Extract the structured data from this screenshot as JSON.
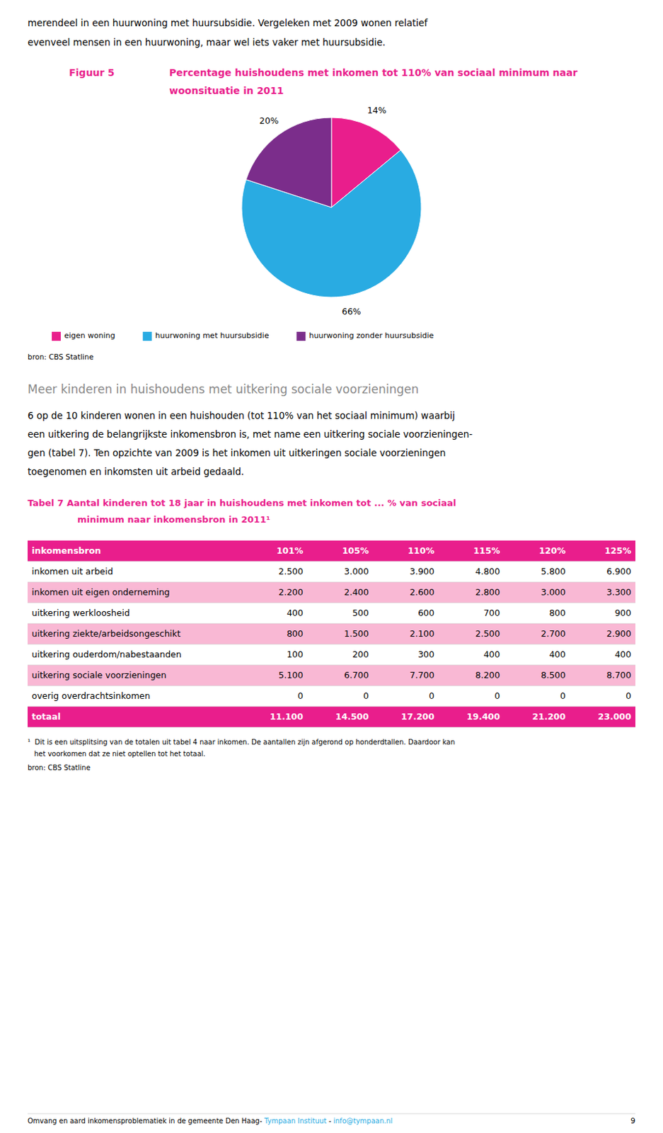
{
  "chart_data": {
    "type": "pie",
    "title": "Percentage huishoudens met inkomen tot 110% van sociaal minimum naar woonsituatie in 2011",
    "categories": [
      "eigen woning",
      "huurwoning met huursubsidie",
      "huurwoning zonder huursubsidie"
    ],
    "values": [
      14,
      66,
      20
    ],
    "value_labels": [
      "14%",
      "66%",
      "20%"
    ],
    "colors": [
      "#E91E8C",
      "#29ABE2",
      "#7B2D8B"
    ],
    "data_labels": true,
    "legend": "bottom"
  },
  "page": {
    "top_text": [
      "merendeel in een huurwoning met huursubsidie. Vergeleken met 2009 wonen relatief",
      "evenveel mensen in een huurwoning, maar wel iets vaker met huursubsidie."
    ],
    "figure_label": "Figuur 5",
    "chart_source": "bron: CBS Statline",
    "section_title": "Meer kinderen in huishoudens met uitkering sociale voorzieningen",
    "body": [
      "6 op de 10 kinderen wonen in een huishouden (tot 110% van het sociaal minimum) waarbij",
      "een uitkering de belangrijkste inkomensbron is, met name een uitkering sociale voorzieningen-",
      "gen (tabel 7). Ten opzichte van 2009 is het inkomen uit uitkeringen sociale voorzieningen",
      "toegenomen en inkomsten uit arbeid gedaald."
    ],
    "table": {
      "title": [
        "Tabel 7   Aantal kinderen tot 18 jaar in huishoudens met inkomen tot ... % van sociaal",
        "minimum naar inkomensbron in 2011¹"
      ],
      "header": [
        "inkomensbron",
        "101%",
        "105%",
        "110%",
        "115%",
        "120%",
        "125%"
      ],
      "rows": [
        [
          "inkomen uit arbeid",
          "2.500",
          "3.000",
          "3.900",
          "4.800",
          "5.800",
          "6.900"
        ],
        [
          "inkomen uit eigen onderneming",
          "2.200",
          "2.400",
          "2.600",
          "2.800",
          "3.000",
          "3.300"
        ],
        [
          "uitkering werkloosheid",
          "400",
          "500",
          "600",
          "700",
          "800",
          "900"
        ],
        [
          "uitkering ziekte/arbeidsongeschikt",
          "800",
          "1.500",
          "2.100",
          "2.500",
          "2.700",
          "2.900"
        ],
        [
          "uitkering ouderdom/nabestaanden",
          "100",
          "200",
          "300",
          "400",
          "400",
          "400"
        ],
        [
          "uitkering sociale voorzieningen",
          "5.100",
          "6.700",
          "7.700",
          "8.200",
          "8.500",
          "8.700"
        ],
        [
          "overig overdrachtsinkomen",
          "0",
          "0",
          "0",
          "0",
          "0",
          "0"
        ],
        [
          "totaal",
          "11.100",
          "14.500",
          "17.200",
          "19.400",
          "21.200",
          "23.000"
        ]
      ],
      "footnotes": [
        "¹  Dit is een uitsplitsing van de totalen uit tabel 4 naar inkomen. De aantallen zijn afgerond op honderdtallen. Daardoor kan",
        "   het voorkomen dat ze niet optellen tot het totaal."
      ],
      "source": "bron: CBS Statline"
    },
    "footer": [
      "Omvang en aard inkomensproblematiek in de gemeente Den Haag- ",
      "Tympaan Instituut",
      " - ",
      "info@tympaan.nl"
    ],
    "page_number": "9",
    "accent_color": "#E91E8C",
    "link_color": "#29ABE2",
    "shaded_color": "#F9B8D4",
    "section_title_color": "#888888"
  }
}
